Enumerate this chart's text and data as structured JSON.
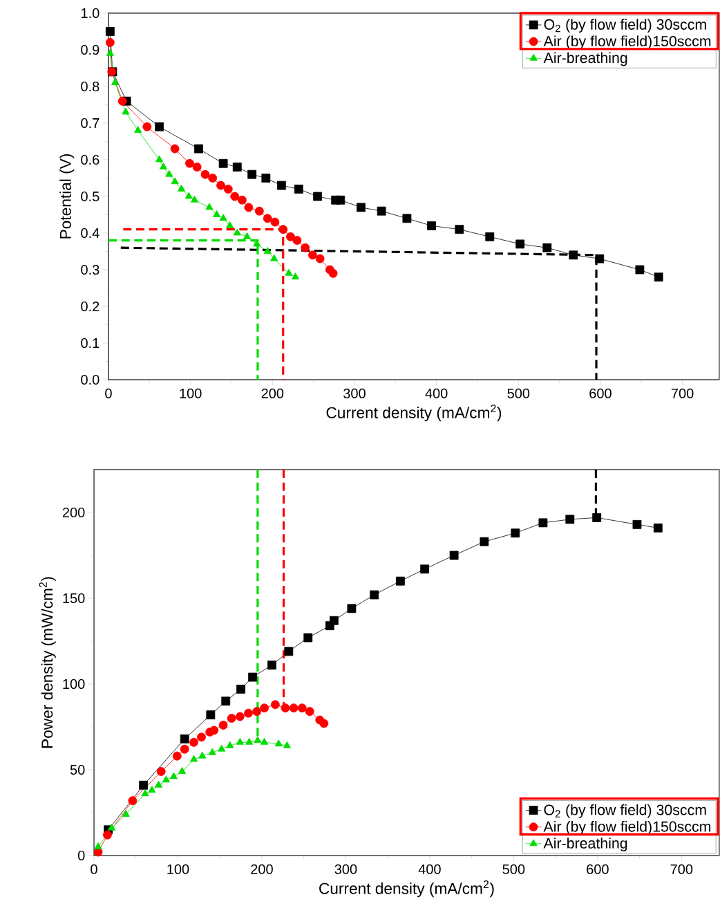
{
  "chart_data": [
    {
      "type": "line",
      "xlabel": "Current density (mA/cm$^{2}$)",
      "ylabel": "Potential (V)",
      "xlim": [
        0,
        745
      ],
      "ylim": [
        0,
        1
      ],
      "xticks": [
        0,
        100,
        200,
        300,
        400,
        500,
        600,
        700
      ],
      "yticks": [
        {
          "value": 0,
          "label": "0.0"
        },
        0.1,
        0.2,
        0.3,
        0.4,
        0.5,
        0.6,
        0.7,
        0.8,
        0.9,
        {
          "value": 1,
          "label": "1.0"
        }
      ],
      "legend": "top right",
      "series": [
        {
          "name": "O$_{2}$ (by flow field)  30sccm",
          "color": "#000000",
          "marker": "square",
          "x": [
            2,
            5,
            22,
            62,
            110,
            140,
            157,
            175,
            192,
            211,
            232,
            255,
            277,
            283,
            308,
            333,
            364,
            394,
            428,
            465,
            502,
            535,
            567,
            599,
            648,
            671
          ],
          "values": [
            0.95,
            0.84,
            0.76,
            0.69,
            0.63,
            0.59,
            0.58,
            0.56,
            0.55,
            0.53,
            0.52,
            0.5,
            0.49,
            0.49,
            0.47,
            0.46,
            0.44,
            0.42,
            0.41,
            0.39,
            0.37,
            0.36,
            0.34,
            0.33,
            0.3,
            0.28
          ]
        },
        {
          "name": "Air (by flow field)150sccm",
          "color": "#ff0000",
          "marker": "circle",
          "x": [
            2,
            4,
            17,
            47,
            81,
            99,
            108,
            118,
            127,
            137,
            146,
            154,
            163,
            171,
            184,
            194,
            203,
            213,
            222,
            230,
            240,
            249,
            258,
            270,
            274
          ],
          "values": [
            0.92,
            0.84,
            0.76,
            0.69,
            0.63,
            0.59,
            0.58,
            0.56,
            0.55,
            0.53,
            0.52,
            0.5,
            0.49,
            0.47,
            0.46,
            0.44,
            0.43,
            0.41,
            0.39,
            0.38,
            0.36,
            0.34,
            0.33,
            0.3,
            0.29
          ]
        },
        {
          "name": "Air-breathing",
          "color": "#00dd00",
          "marker": "triangle",
          "x": [
            2,
            8,
            21,
            36,
            62,
            67,
            74,
            81,
            89,
            98,
            105,
            123,
            132,
            140,
            148,
            157,
            169,
            181,
            194,
            202,
            220,
            228
          ],
          "values": [
            0.89,
            0.81,
            0.73,
            0.68,
            0.6,
            0.58,
            0.56,
            0.54,
            0.52,
            0.5,
            0.49,
            0.47,
            0.45,
            0.44,
            0.42,
            0.4,
            0.39,
            0.37,
            0.35,
            0.33,
            0.29,
            0.28
          ]
        },
        {
          "type": "line",
          "color": "#000000",
          "line_style": "dashed",
          "marker": "none",
          "x": [
            15,
            595,
            595
          ],
          "values": [
            0.36,
            0.34,
            0
          ]
        },
        {
          "type": "line",
          "color": "#ff0000",
          "line_style": "dashed",
          "marker": "none",
          "x": [
            18,
            213,
            213
          ],
          "values": [
            0.41,
            0.41,
            0
          ]
        },
        {
          "type": "line",
          "color": "#00dd00",
          "line_style": "dashed",
          "marker": "none",
          "x": [
            0,
            182,
            182
          ],
          "values": [
            0.38,
            0.38,
            0
          ]
        }
      ]
    },
    {
      "type": "line",
      "xlabel": "Current density (mA/cm$^{2}$)",
      "ylabel": "Power density (mW/cm$^{2}$)",
      "xlim": [
        0,
        745
      ],
      "ylim": [
        0,
        225
      ],
      "xticks": [
        0,
        100,
        200,
        300,
        400,
        500,
        600,
        700
      ],
      "yticks": [
        0,
        50,
        100,
        150,
        200
      ],
      "legend": "bottom right",
      "series": [
        {
          "name": "O$_{2}$ (by flow field)  30sccm",
          "color": "#000000",
          "marker": "square",
          "x": [
            17,
            59,
            108,
            139,
            157,
            175,
            189,
            212,
            232,
            255,
            281,
            286,
            307,
            334,
            365,
            394,
            429,
            465,
            502,
            535,
            567,
            599,
            647,
            672
          ],
          "values": [
            15,
            41,
            68,
            82,
            90,
            97,
            104,
            111,
            119,
            127,
            134,
            137,
            144,
            152,
            160,
            167,
            175,
            183,
            188,
            194,
            196,
            197,
            193,
            191
          ]
        },
        {
          "name": "Air (by flow field)150sccm",
          "color": "#ff0000",
          "marker": "circle",
          "x": [
            5,
            16,
            46,
            80,
            99,
            108,
            119,
            128,
            138,
            143,
            154,
            164,
            174,
            184,
            194,
            203,
            216,
            228,
            238,
            248,
            257,
            269,
            274
          ],
          "values": [
            2,
            12,
            32,
            49,
            58,
            62,
            66,
            69,
            72,
            73,
            76,
            80,
            81,
            83,
            84,
            86,
            88,
            86,
            86,
            86,
            84,
            79,
            77
          ]
        },
        {
          "name": "Air-breathing",
          "color": "#00dd00",
          "marker": "triangle",
          "x": [
            5,
            21,
            38,
            61,
            69,
            77,
            86,
            95,
            105,
            119,
            129,
            141,
            152,
            162,
            174,
            185,
            195,
            203,
            220,
            230
          ],
          "values": [
            5,
            16,
            24,
            36,
            38,
            41,
            44,
            46,
            49,
            56,
            58,
            60,
            62,
            64,
            66,
            66,
            67,
            66,
            65,
            64
          ]
        },
        {
          "type": "line",
          "color": "#000000",
          "line_style": "dashed",
          "marker": "none",
          "x": [
            598,
            598
          ],
          "values": [
            225,
            197
          ]
        },
        {
          "type": "line",
          "color": "#ff0000",
          "line_style": "dashed",
          "marker": "none",
          "x": [
            226,
            226
          ],
          "values": [
            225,
            87
          ]
        },
        {
          "type": "line",
          "color": "#00dd00",
          "line_style": "dashed",
          "marker": "none",
          "x": [
            195,
            195
          ],
          "values": [
            225,
            67
          ]
        }
      ]
    }
  ]
}
